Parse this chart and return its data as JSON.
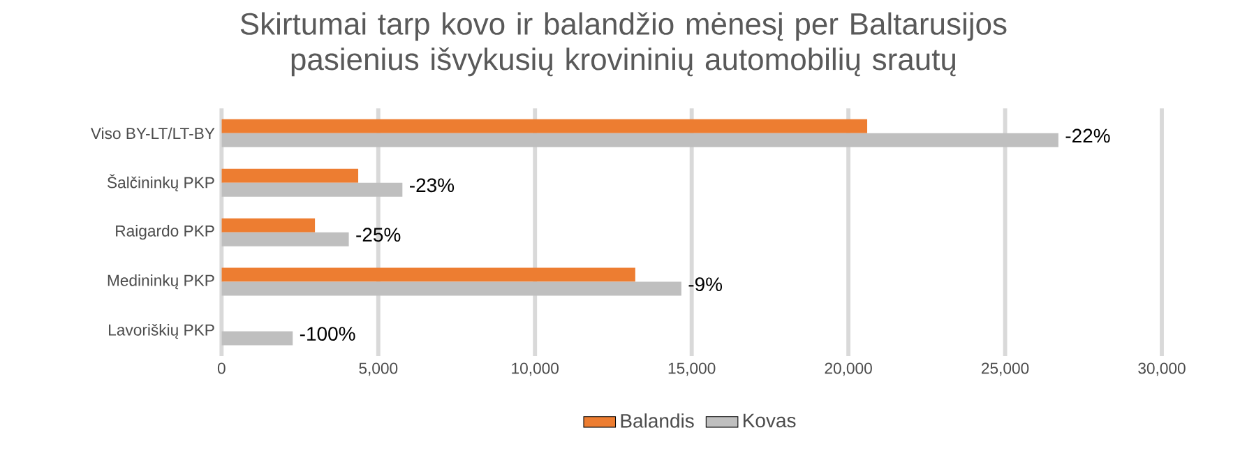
{
  "chart_data": {
    "type": "bar",
    "orientation": "horizontal",
    "title": "Skirtumai tarp kovo ir balandžio mėnesį per Baltarusijos pasienius išvykusių krovininių automobilių srautų",
    "categories": [
      "Viso BY-LT/LT-BY",
      "Šalčininkų PKP",
      "Raigardo PKP",
      "Medininkų PKP",
      "Lavoriškių PKP"
    ],
    "series": [
      {
        "name": "Balandis",
        "color": "#ed7d31",
        "values": [
          20600,
          4360,
          2980,
          13200,
          0
        ]
      },
      {
        "name": "Kovas",
        "color": "#bfbfbf",
        "values": [
          26700,
          5770,
          4060,
          14670,
          2270
        ]
      }
    ],
    "annotations": [
      {
        "text": "-22%",
        "x": 26700,
        "y": "Viso BY-LT/LT-BY"
      },
      {
        "text": "-23%",
        "x": 5770,
        "y": "Šalčininkų PKP"
      },
      {
        "text": "-25%",
        "x": 4060,
        "y": "Raigardo PKP"
      },
      {
        "text": "-9%",
        "x": 14670,
        "y": "Medininkų PKP"
      },
      {
        "text": "-100%",
        "x": 2270,
        "y": "Lavoriškių PKP"
      }
    ],
    "xlim": [
      0,
      30000
    ],
    "xticks": [
      {
        "value": 0,
        "label": "0"
      },
      {
        "value": 5000,
        "label": "5,000"
      },
      {
        "value": 10000,
        "label": "10,000"
      },
      {
        "value": 15000,
        "label": "15,000"
      },
      {
        "value": 20000,
        "label": "20,000"
      },
      {
        "value": 25000,
        "label": "25,000"
      },
      {
        "value": 30000,
        "label": "30,000"
      }
    ],
    "grid": "x",
    "legend": "bottom"
  }
}
